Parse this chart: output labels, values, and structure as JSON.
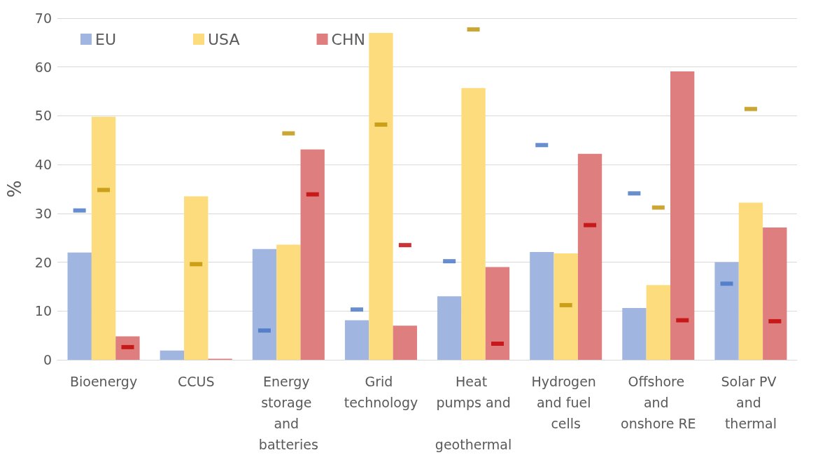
{
  "chart_data": {
    "type": "bar",
    "ylabel": "%",
    "categories": [
      "Bioenergy",
      "CCUS",
      "Energy storage and batteries",
      "Grid technology",
      "Heat pumps and geothermal",
      "Hydrogen and fuel cells",
      "Offshore and onshore RE",
      "Solar PV and thermal"
    ],
    "ylim": [
      0,
      70
    ],
    "yticks": [
      0,
      10,
      20,
      30,
      40,
      50,
      60,
      70
    ],
    "grid": "y",
    "legend": "top left",
    "series": [
      {
        "name": "EU",
        "color": "#a0b6e0",
        "values": [
          22.0,
          1.9,
          22.7,
          8.1,
          13.0,
          22.1,
          10.6,
          20.0
        ]
      },
      {
        "name": "USA",
        "color": "#fddc7e",
        "values": [
          49.8,
          33.5,
          23.6,
          67.0,
          55.7,
          21.8,
          15.3,
          32.2
        ]
      },
      {
        "name": "CHN",
        "color": "#df7e7e",
        "values": [
          4.8,
          0.2,
          43.1,
          7.0,
          19.0,
          42.2,
          59.1,
          27.1
        ]
      },
      {
        "type": "scatter",
        "marker": "square",
        "color": "#4472c4",
        "values": [
          30.6,
          null,
          6.0,
          10.3,
          20.2,
          44.0,
          34.1,
          15.6
        ]
      },
      {
        "type": "scatter",
        "marker": "square",
        "color": "#bf9000",
        "values": [
          34.8,
          19.6,
          46.4,
          48.2,
          67.7,
          11.2,
          31.2,
          51.4
        ]
      },
      {
        "type": "scatter",
        "marker": "square",
        "color": "#c00000",
        "values": [
          2.6,
          null,
          33.9,
          23.5,
          3.3,
          27.6,
          8.1,
          7.9
        ]
      }
    ]
  }
}
